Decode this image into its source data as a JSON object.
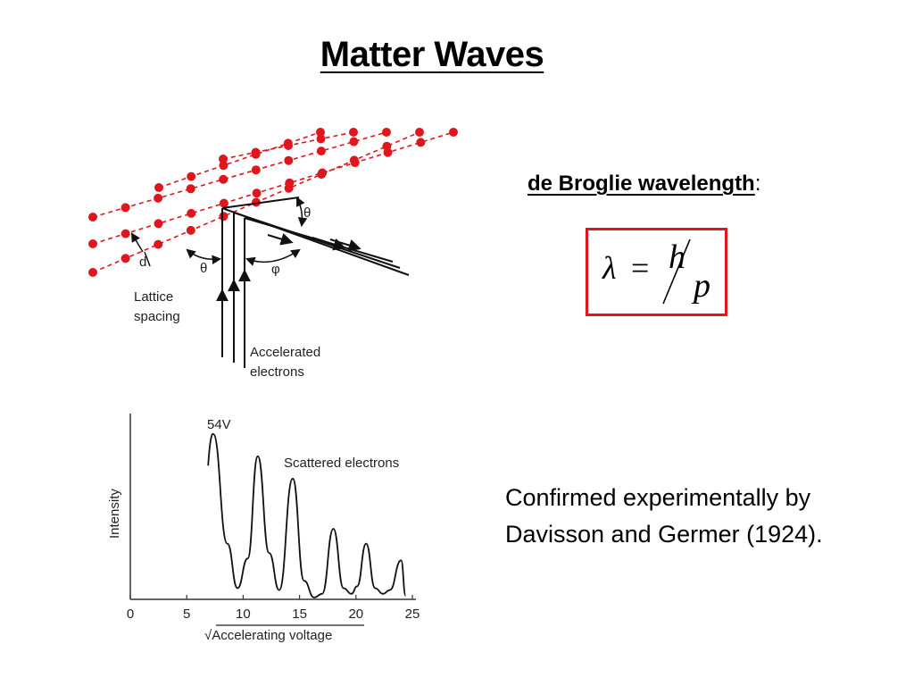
{
  "slide": {
    "title": "Matter Waves",
    "de_broglie_label": "de Broglie wavelength",
    "de_broglie_colon": ":",
    "formula": {
      "lambda": "λ",
      "equals": "=",
      "numerator": "h",
      "denominator": "p"
    },
    "confirmation_line1": "Confirmed experimentally by",
    "confirmation_line2": "Davisson and Germer (1924).",
    "box_color": "#e0161d"
  },
  "diagram": {
    "theta_label": "θ",
    "phi_label": "φ",
    "d_label": "d",
    "lattice_line1": "Lattice",
    "lattice_line2": "spacing",
    "accel_line1": "Accelerated",
    "accel_line2": "electrons",
    "atom_color": "#e0161d"
  },
  "chart_data": {
    "type": "line",
    "title": "",
    "annotation_peak": "54V",
    "annotation_series": "Scattered electrons",
    "xlabel": "√Accelerating voltage",
    "ylabel": "Intensity",
    "xlim": [
      0,
      25
    ],
    "ylim": [
      0,
      1
    ],
    "x_ticks": [
      0,
      5,
      10,
      15,
      20,
      25
    ],
    "peaks": [
      {
        "x": 7.35,
        "y": 0.89
      },
      {
        "x": 11.3,
        "y": 0.77
      },
      {
        "x": 14.4,
        "y": 0.65
      },
      {
        "x": 18.0,
        "y": 0.38
      },
      {
        "x": 20.9,
        "y": 0.3
      },
      {
        "x": 24.0,
        "y": 0.21
      }
    ],
    "series": [
      {
        "name": "",
        "x": [
          7.35,
          8.6,
          9.5,
          10.4,
          11.3,
          12.3,
          13.2,
          14.4,
          15.4,
          16.3,
          17.0,
          18.0,
          18.9,
          19.6,
          20.1,
          20.9,
          21.7,
          22.4,
          23.0,
          24.0,
          24.4
        ],
        "y": [
          0.89,
          0.3,
          0.06,
          0.22,
          0.77,
          0.25,
          0.05,
          0.65,
          0.1,
          0.01,
          0.03,
          0.38,
          0.06,
          0.03,
          0.07,
          0.3,
          0.06,
          0.03,
          0.05,
          0.21,
          0.02
        ]
      }
    ],
    "grid": false
  }
}
